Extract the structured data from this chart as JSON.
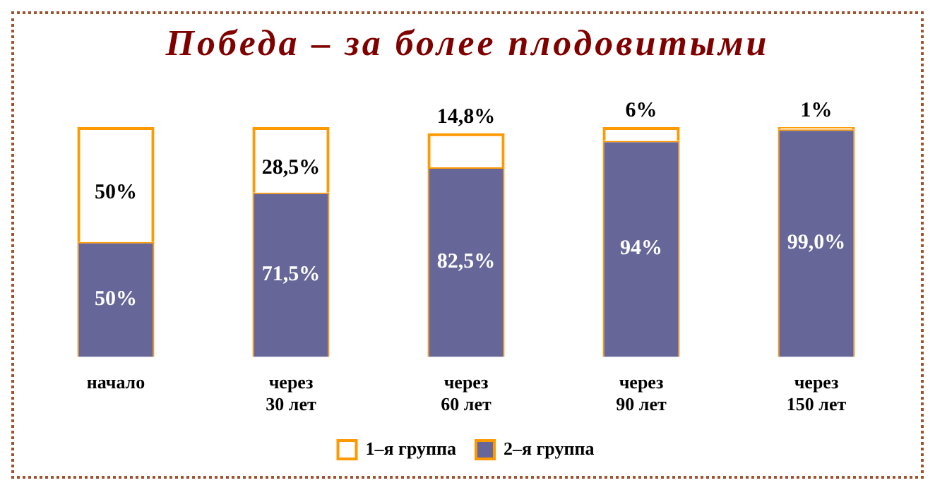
{
  "chart_data": {
    "type": "bar",
    "title": "Победа – за более плодовитыми",
    "stacked": true,
    "legend": "bottom",
    "categories": [
      "начало",
      "через\n30 лет",
      "через\n60 лет",
      "через\n90 лет",
      "через\n150 лет"
    ],
    "series": [
      {
        "name": "2–я группа",
        "color": "#666699",
        "values": [
          50,
          71.5,
          82.5,
          94,
          99.0
        ],
        "value_labels": [
          "50%",
          "71,5%",
          "82,5%",
          "94%",
          "99,0%"
        ]
      },
      {
        "name": "1–я группа",
        "color": "#ff9900",
        "values": [
          50,
          28.5,
          14.8,
          6,
          1
        ],
        "value_labels": [
          "50%",
          "28,5%",
          "14,8%",
          "6%",
          "1%"
        ]
      }
    ]
  }
}
